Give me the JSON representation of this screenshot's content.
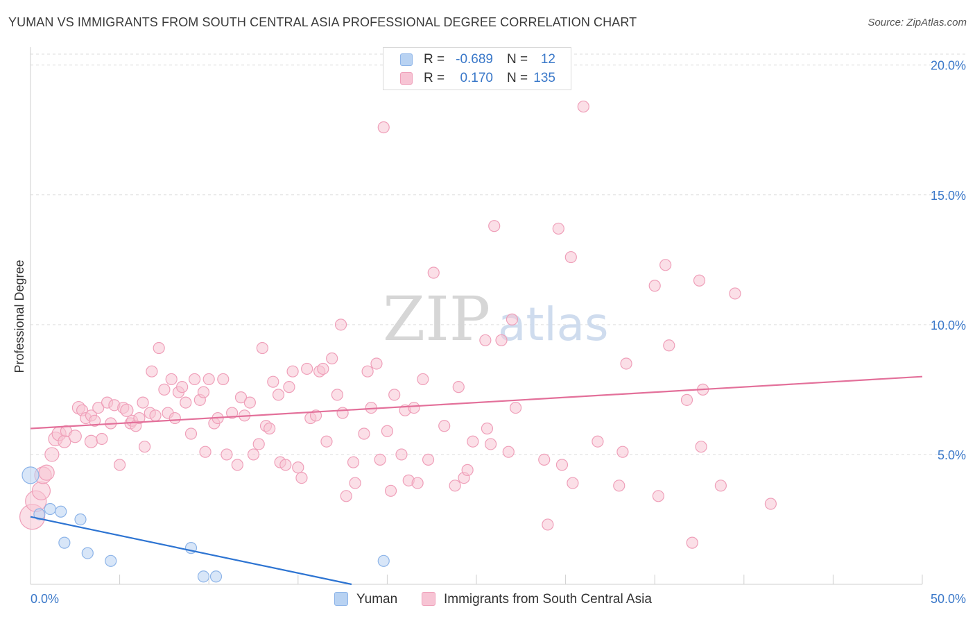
{
  "title": "YUMAN VS IMMIGRANTS FROM SOUTH CENTRAL ASIA PROFESSIONAL DEGREE CORRELATION CHART",
  "source": "Source: ZipAtlas.com",
  "watermark": {
    "zip": "ZIP",
    "atlas": "atlas"
  },
  "legend_top": [
    {
      "r_label": "R =",
      "r_value": "-0.689",
      "n_label": "N =",
      "n_value": "12"
    },
    {
      "r_label": "R =",
      "r_value": "0.170",
      "n_label": "N =",
      "n_value": "135"
    }
  ],
  "legend_bottom": [
    {
      "label": "Yuman"
    },
    {
      "label": "Immigrants from South Central Asia"
    }
  ],
  "colors": {
    "blue_fill": "#b8d2f2",
    "blue_stroke": "#8db4e8",
    "blue_line": "#2d74d2",
    "pink_fill": "#f7c4d4",
    "pink_stroke": "#ef9fb9",
    "pink_line": "#e3709a",
    "axis_label": "#3a78c9",
    "grid": "#dddddd"
  },
  "chart_data": {
    "type": "scatter",
    "title": "YUMAN VS IMMIGRANTS FROM SOUTH CENTRAL ASIA PROFESSIONAL DEGREE CORRELATION CHART",
    "xlabel": "",
    "ylabel": "Professional Degree",
    "xlim": [
      0,
      50
    ],
    "ylim": [
      0,
      20.5
    ],
    "x_tick_labels": [
      "0.0%",
      "50.0%"
    ],
    "y_ticks": [
      5,
      10,
      15,
      20
    ],
    "y_tick_labels": [
      "5.0%",
      "10.0%",
      "15.0%",
      "20.0%"
    ],
    "series": [
      {
        "name": "Yuman",
        "color": "blue",
        "trend": {
          "x": [
            0,
            18
          ],
          "y": [
            2.6,
            0.0
          ]
        },
        "points": [
          [
            0.0,
            4.2,
            24
          ],
          [
            0.5,
            2.7,
            16
          ],
          [
            1.1,
            2.9,
            16
          ],
          [
            1.7,
            2.8,
            16
          ],
          [
            1.9,
            1.6,
            16
          ],
          [
            2.8,
            2.5,
            16
          ],
          [
            3.2,
            1.2,
            16
          ],
          [
            4.5,
            0.9,
            16
          ],
          [
            9.0,
            1.4,
            16
          ],
          [
            9.7,
            0.3,
            16
          ],
          [
            10.4,
            0.3,
            16
          ],
          [
            19.8,
            0.9,
            16
          ]
        ]
      },
      {
        "name": "Immigrants from South Central Asia",
        "color": "pink",
        "trend": {
          "x": [
            0,
            50
          ],
          "y": [
            6.0,
            8.0
          ]
        },
        "points": [
          [
            0.1,
            2.6,
            36
          ],
          [
            0.3,
            3.2,
            30
          ],
          [
            0.6,
            3.6,
            26
          ],
          [
            0.7,
            4.2,
            24
          ],
          [
            0.9,
            4.3,
            22
          ],
          [
            1.2,
            5.0,
            20
          ],
          [
            1.4,
            5.6,
            20
          ],
          [
            1.6,
            5.8,
            20
          ],
          [
            1.9,
            5.5,
            18
          ],
          [
            2.0,
            5.9,
            16
          ],
          [
            2.5,
            5.7,
            18
          ],
          [
            2.7,
            6.8,
            18
          ],
          [
            2.9,
            6.7,
            16
          ],
          [
            3.1,
            6.4,
            16
          ],
          [
            3.4,
            6.5,
            16
          ],
          [
            3.4,
            5.5,
            18
          ],
          [
            3.6,
            6.3,
            16
          ],
          [
            3.8,
            6.8,
            16
          ],
          [
            4.0,
            5.6,
            16
          ],
          [
            4.3,
            7.0,
            16
          ],
          [
            4.5,
            6.2,
            16
          ],
          [
            4.7,
            6.9,
            16
          ],
          [
            5.0,
            4.6,
            16
          ],
          [
            5.2,
            6.8,
            16
          ],
          [
            5.4,
            6.7,
            18
          ],
          [
            5.6,
            6.2,
            16
          ],
          [
            5.7,
            6.3,
            16
          ],
          [
            5.9,
            6.1,
            16
          ],
          [
            6.1,
            6.4,
            16
          ],
          [
            6.3,
            7.0,
            16
          ],
          [
            6.4,
            5.3,
            16
          ],
          [
            6.7,
            6.6,
            16
          ],
          [
            6.8,
            8.2,
            16
          ],
          [
            7.0,
            6.5,
            16
          ],
          [
            7.2,
            9.1,
            16
          ],
          [
            7.5,
            7.5,
            16
          ],
          [
            7.7,
            6.6,
            16
          ],
          [
            7.9,
            7.9,
            16
          ],
          [
            8.1,
            6.4,
            16
          ],
          [
            8.3,
            7.4,
            16
          ],
          [
            8.5,
            7.6,
            16
          ],
          [
            8.7,
            7.0,
            16
          ],
          [
            9.0,
            5.8,
            16
          ],
          [
            9.2,
            7.9,
            16
          ],
          [
            9.5,
            7.1,
            16
          ],
          [
            9.7,
            7.4,
            16
          ],
          [
            9.8,
            5.1,
            16
          ],
          [
            10.0,
            7.9,
            16
          ],
          [
            10.3,
            6.2,
            16
          ],
          [
            10.5,
            6.4,
            16
          ],
          [
            10.8,
            7.9,
            16
          ],
          [
            11.0,
            5.0,
            16
          ],
          [
            11.3,
            6.6,
            16
          ],
          [
            11.6,
            4.6,
            16
          ],
          [
            11.8,
            7.2,
            16
          ],
          [
            12.0,
            6.5,
            16
          ],
          [
            12.3,
            7.0,
            16
          ],
          [
            12.5,
            5.0,
            16
          ],
          [
            12.8,
            5.4,
            16
          ],
          [
            13.0,
            9.1,
            16
          ],
          [
            13.2,
            6.1,
            16
          ],
          [
            13.4,
            6.0,
            16
          ],
          [
            13.6,
            7.8,
            16
          ],
          [
            13.9,
            7.3,
            16
          ],
          [
            14.0,
            4.7,
            16
          ],
          [
            14.3,
            4.6,
            16
          ],
          [
            14.5,
            7.6,
            16
          ],
          [
            14.7,
            8.2,
            16
          ],
          [
            15.0,
            4.5,
            16
          ],
          [
            15.2,
            4.1,
            16
          ],
          [
            15.5,
            8.3,
            16
          ],
          [
            15.7,
            6.4,
            16
          ],
          [
            16.0,
            6.5,
            16
          ],
          [
            16.2,
            8.2,
            16
          ],
          [
            16.4,
            8.3,
            16
          ],
          [
            16.6,
            5.5,
            16
          ],
          [
            16.9,
            8.7,
            16
          ],
          [
            17.2,
            7.3,
            16
          ],
          [
            17.4,
            10.0,
            16
          ],
          [
            17.5,
            6.6,
            16
          ],
          [
            17.7,
            3.4,
            16
          ],
          [
            18.1,
            4.7,
            16
          ],
          [
            18.2,
            3.9,
            16
          ],
          [
            18.7,
            5.8,
            16
          ],
          [
            18.9,
            8.2,
            16
          ],
          [
            19.1,
            6.8,
            16
          ],
          [
            19.4,
            8.5,
            16
          ],
          [
            19.6,
            4.8,
            16
          ],
          [
            19.8,
            17.6,
            16
          ],
          [
            20.0,
            5.9,
            16
          ],
          [
            20.2,
            3.6,
            16
          ],
          [
            20.4,
            7.3,
            16
          ],
          [
            20.8,
            5.0,
            16
          ],
          [
            21.0,
            6.7,
            16
          ],
          [
            21.2,
            4.0,
            16
          ],
          [
            21.5,
            6.8,
            16
          ],
          [
            21.7,
            3.9,
            16
          ],
          [
            22.0,
            7.9,
            16
          ],
          [
            22.3,
            4.8,
            16
          ],
          [
            22.6,
            12.0,
            16
          ],
          [
            23.2,
            6.1,
            16
          ],
          [
            23.8,
            3.8,
            16
          ],
          [
            24.0,
            7.6,
            16
          ],
          [
            24.3,
            4.1,
            16
          ],
          [
            24.5,
            4.4,
            16
          ],
          [
            24.8,
            5.5,
            16
          ],
          [
            25.5,
            9.4,
            16
          ],
          [
            25.6,
            6.0,
            16
          ],
          [
            25.8,
            5.4,
            16
          ],
          [
            26.0,
            13.8,
            16
          ],
          [
            26.4,
            9.4,
            16
          ],
          [
            26.8,
            5.1,
            16
          ],
          [
            27.0,
            10.2,
            16
          ],
          [
            27.2,
            6.8,
            16
          ],
          [
            29.0,
            2.3,
            16
          ],
          [
            28.8,
            4.8,
            16
          ],
          [
            29.6,
            13.7,
            16
          ],
          [
            29.8,
            4.6,
            16
          ],
          [
            30.3,
            12.6,
            16
          ],
          [
            30.4,
            3.9,
            16
          ],
          [
            31.0,
            18.4,
            16
          ],
          [
            31.8,
            5.5,
            16
          ],
          [
            33.0,
            3.8,
            16
          ],
          [
            33.2,
            5.1,
            16
          ],
          [
            33.4,
            8.5,
            16
          ],
          [
            35.0,
            11.5,
            16
          ],
          [
            35.2,
            3.4,
            16
          ],
          [
            35.6,
            12.3,
            16
          ],
          [
            35.8,
            9.2,
            16
          ],
          [
            36.8,
            7.1,
            16
          ],
          [
            37.1,
            1.6,
            16
          ],
          [
            37.5,
            11.7,
            16
          ],
          [
            37.6,
            5.3,
            16
          ],
          [
            37.7,
            7.5,
            16
          ],
          [
            38.7,
            3.8,
            16
          ],
          [
            39.5,
            11.2,
            16
          ],
          [
            41.5,
            3.1,
            16
          ]
        ]
      }
    ]
  }
}
